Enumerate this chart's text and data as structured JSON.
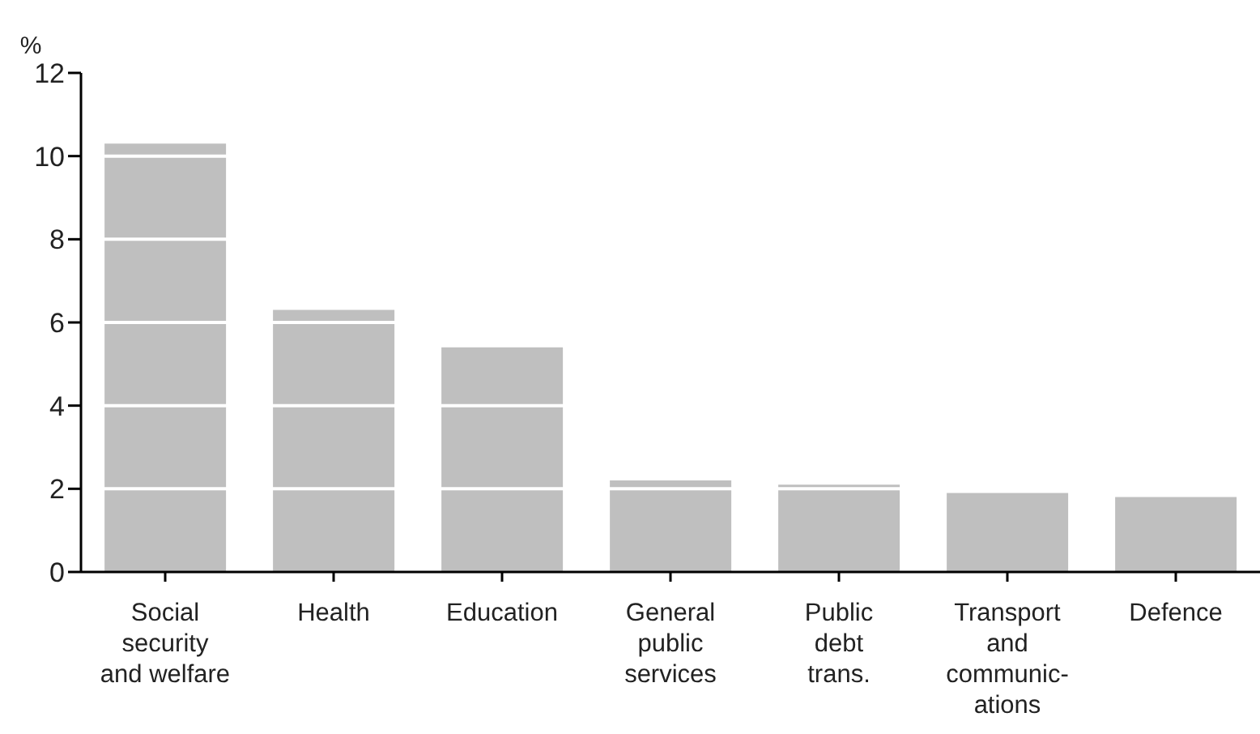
{
  "chart_data": {
    "type": "bar",
    "ylabel": "%",
    "categories": [
      "Social\nsecurity\nand welfare",
      "Health",
      "Education",
      "General\npublic\nservices",
      "Public\ndebt\ntrans.",
      "Transport\nand\ncommunic-\nations",
      "Defence"
    ],
    "values": [
      10.3,
      6.3,
      5.4,
      2.2,
      2.1,
      1.9,
      1.8
    ],
    "color": "#bfbfbf",
    "ylim": [
      0,
      12
    ],
    "yticks": [
      0,
      2,
      4,
      6,
      8,
      10,
      12
    ],
    "grid": "y"
  }
}
